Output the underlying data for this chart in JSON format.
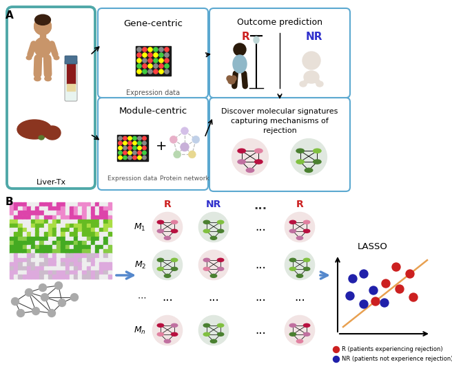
{
  "fig_width": 6.56,
  "fig_height": 5.42,
  "dpi": 100,
  "panel_A_label": "A",
  "panel_B_label": "B",
  "liver_tx_label": "Liver-Tx",
  "gene_centric_label": "Gene-centric",
  "module_centric_label": "Module-centric",
  "expression_data_label": "Expression data",
  "protein_network_label": "Protein network",
  "outcome_prediction_label": "Outcome prediction",
  "discover_label": "Discover molecular signatures\ncapturing mechanisms of\nrejection",
  "R_label": "R",
  "NR_label": "NR",
  "LASSO_label": "LASSO",
  "legend_R": "R (patients experiencing rejection)",
  "legend_NR": "NR (patients not experience rejection)",
  "teal_box_color": "#4FA8A8",
  "blue_box_color": "#5BA8D0",
  "skin_color": "#C8956A",
  "dark_skin": "#7A5230",
  "hair_color": "#3A2010",
  "blood_color": "#8B1A1A",
  "tube_cap_color": "#4A7090",
  "liver_color": "#8B3520",
  "crimson_node": "#B81040",
  "mauve_node": "#C070A0",
  "pink_node": "#E080A0",
  "dark_green_node": "#4A8030",
  "light_green_node": "#80C040",
  "gray_node": "#999999",
  "purple_node_l": "#C0A0D8",
  "purple_node_d": "#9060B0",
  "yellow_node": "#D8D060",
  "pink_bg": "#F2E4E4",
  "green_bg": "#DFF0D8",
  "gray_bg": "#E0E8E0"
}
